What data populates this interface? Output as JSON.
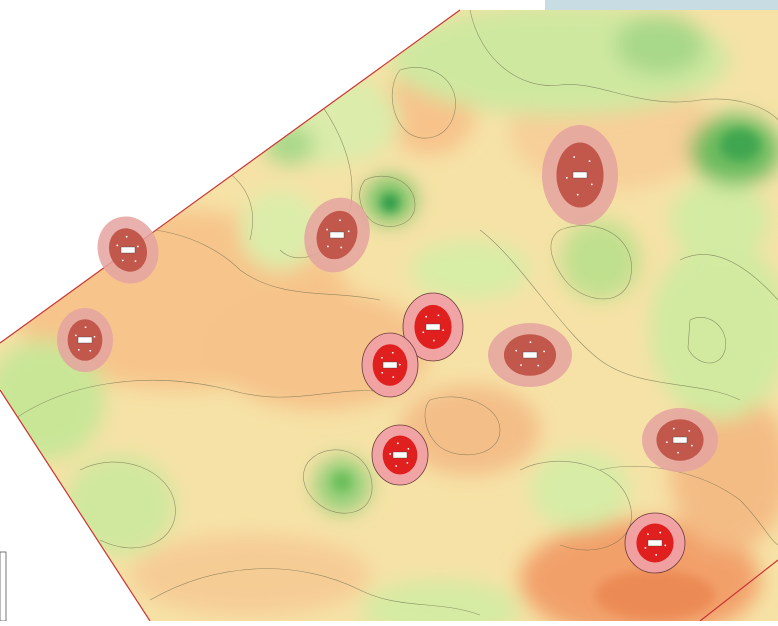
{
  "map": {
    "type": "interpolated-heatmap",
    "palette": {
      "high": "#d7191c",
      "mid_high": "#f4a582",
      "mid": "#fee08b",
      "low_mid": "#d9ef8b",
      "low": "#1a9850",
      "hotspot_outer": "#e8959a",
      "hotspot_inner": "#c04848",
      "boundary": "#cc3333",
      "contour": "#6b6b4a"
    },
    "hotspots": [
      {
        "label": "",
        "intensity": "medium"
      },
      {
        "label": "",
        "intensity": "medium"
      },
      {
        "label": "",
        "intensity": "medium"
      },
      {
        "label": "",
        "intensity": "medium"
      },
      {
        "label": "",
        "intensity": "high"
      },
      {
        "label": "",
        "intensity": "high"
      },
      {
        "label": "",
        "intensity": "medium"
      },
      {
        "label": "",
        "intensity": "high"
      },
      {
        "label": "",
        "intensity": "medium"
      },
      {
        "label": "",
        "intensity": "high"
      }
    ]
  }
}
